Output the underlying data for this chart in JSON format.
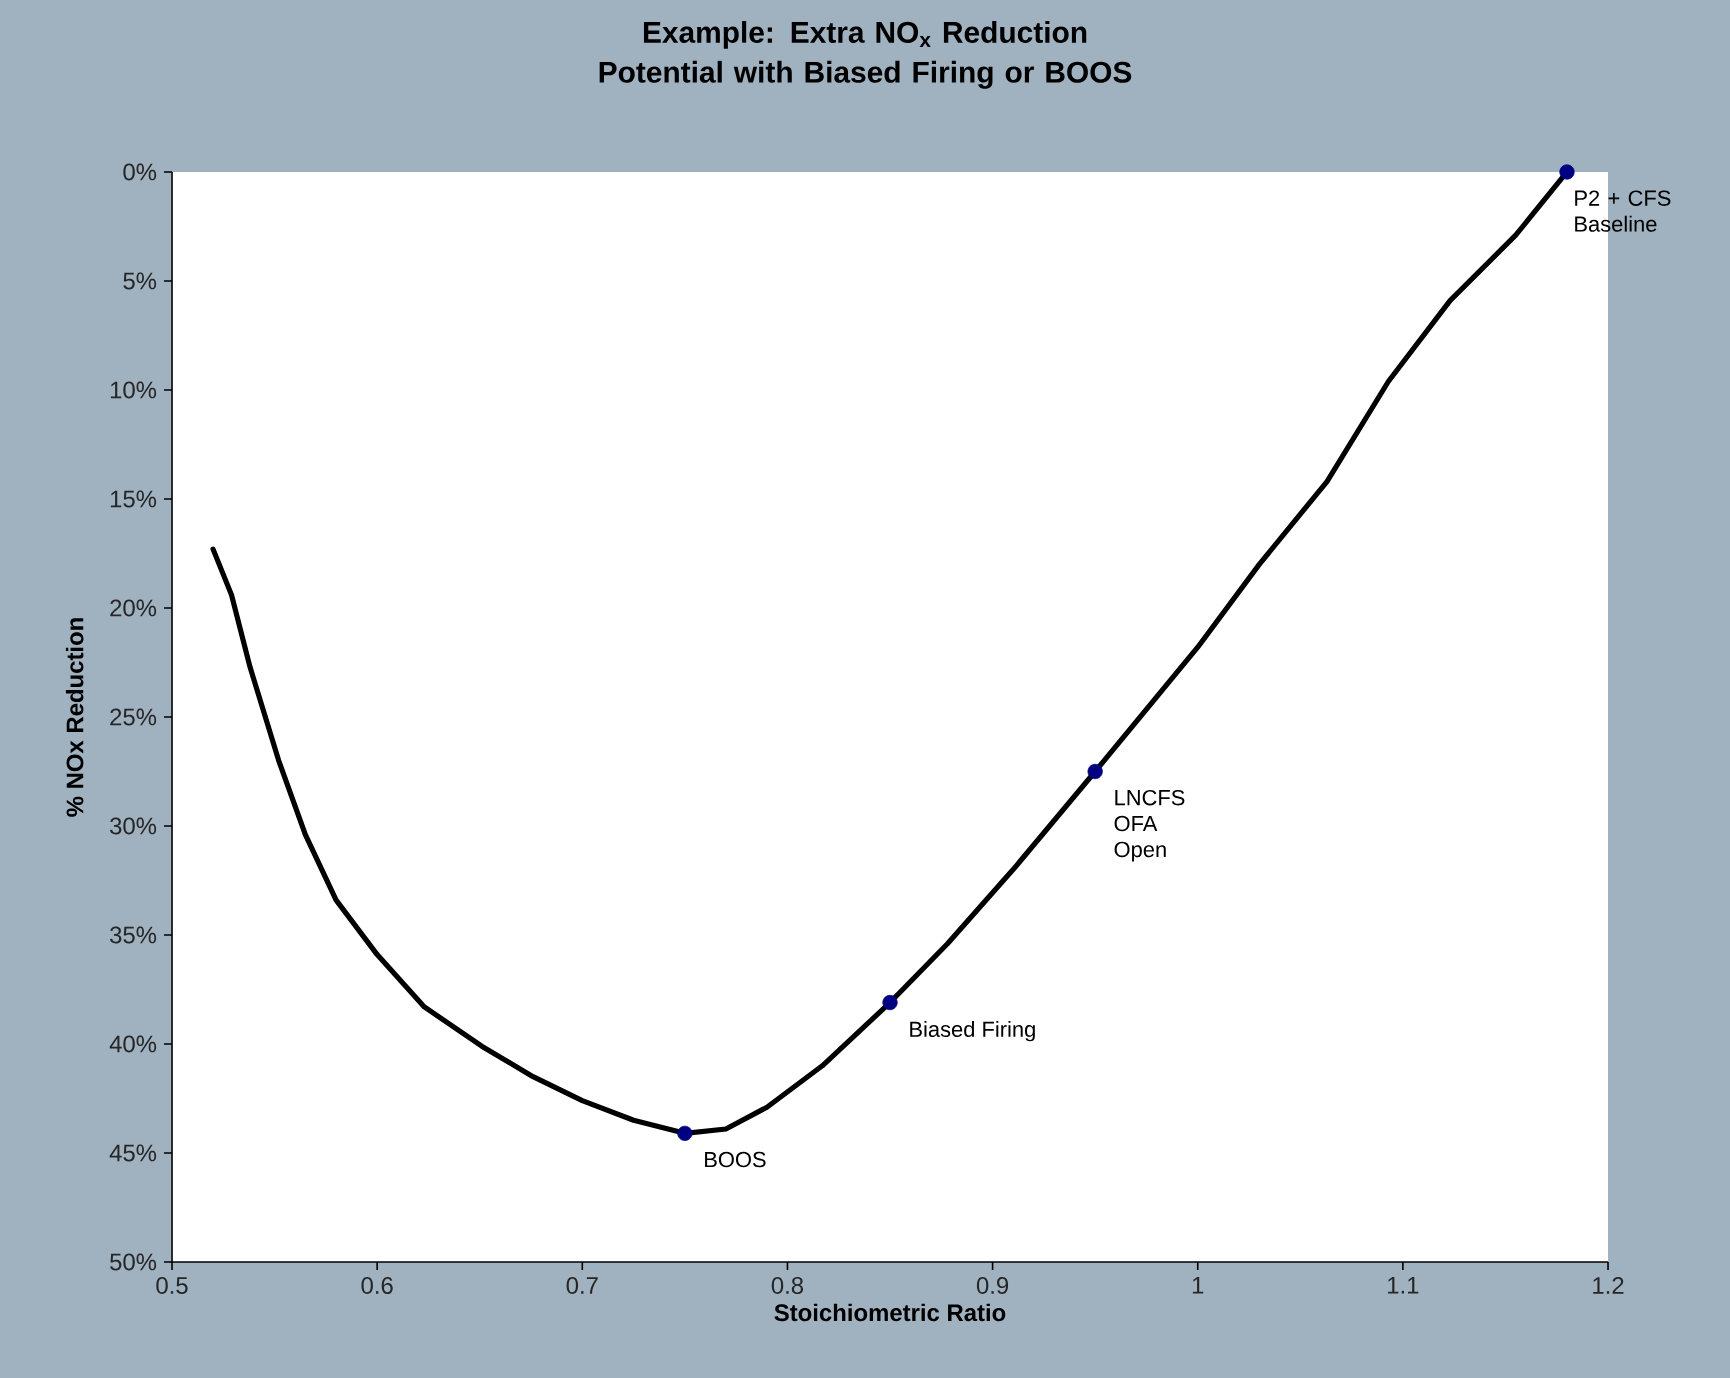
{
  "chart_data": {
    "type": "line",
    "title": "Example: Extra NO$_{x}$ Reduction Potential with Biased Firing or BOOS",
    "xlabel": "Stoichiometric Ratio",
    "ylabel": "% NOx Reduction",
    "xlim": [
      0.5,
      1.2
    ],
    "xticks": [
      0.5,
      0.6,
      0.7,
      0.8,
      0.9,
      1,
      1.1,
      1.2
    ],
    "ylim": [
      50,
      0
    ],
    "yticks": [
      {
        "value": 0,
        "label": "0%"
      },
      {
        "value": 5,
        "label": "5%"
      },
      {
        "value": 10,
        "label": "10%"
      },
      {
        "value": 15,
        "label": "15%"
      },
      {
        "value": 20,
        "label": "20%"
      },
      {
        "value": 25,
        "label": "25%"
      },
      {
        "value": 30,
        "label": "30%"
      },
      {
        "value": 35,
        "label": "35%"
      },
      {
        "value": 40,
        "label": "40%"
      },
      {
        "value": 45,
        "label": "45%"
      },
      {
        "value": 50,
        "label": "50%"
      }
    ],
    "grid": false,
    "series": [
      {
        "color": "#000000",
        "marker": "none",
        "line_style": "solid",
        "x": [
          0.52,
          0.529,
          0.538,
          0.552,
          0.565,
          0.58,
          0.6,
          0.623,
          0.651,
          0.676,
          0.7,
          0.725,
          0.75,
          0.77,
          0.79,
          0.817,
          0.85,
          0.878,
          0.91,
          0.95,
          1.0,
          1.03,
          1.063,
          1.093,
          1.123,
          1.155,
          1.18
        ],
        "values": [
          17.3,
          19.4,
          22.7,
          27,
          30.4,
          33.4,
          35.9,
          38.3,
          40.1,
          41.5,
          42.6,
          43.5,
          44.1,
          43.9,
          42.9,
          41.0,
          38.1,
          35.4,
          32.0,
          27.5,
          21.8,
          18.0,
          14.2,
          9.6,
          5.9,
          2.9,
          0
        ]
      },
      {
        "type": "scatter",
        "color": "#000080",
        "marker": "circle",
        "x": [
          0.75,
          0.85,
          0.95,
          1.18
        ],
        "values": [
          44.1,
          38.1,
          27.5,
          0
        ]
      }
    ],
    "annotations": [
      {
        "text": "BOOS",
        "x": 0.75,
        "y": 44.1
      },
      {
        "text": "Biased Firing",
        "x": 0.85,
        "y": 38.1
      },
      {
        "text": "LNCFS OFA Open",
        "x": 0.95,
        "y": 27.5
      },
      {
        "text": "P2 + CFS Baseline",
        "x": 1.18,
        "y": 0
      }
    ]
  }
}
